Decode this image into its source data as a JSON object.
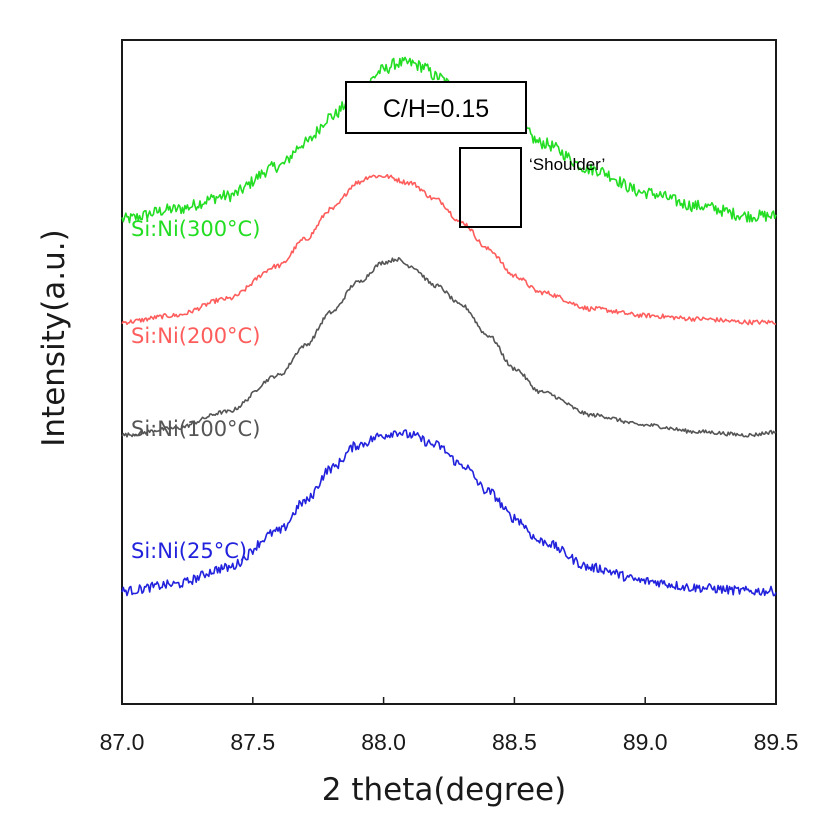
{
  "chart_data": {
    "type": "line",
    "title": "",
    "xlabel": "2 theta(degree)",
    "ylabel": "Intensity(a.u.)",
    "xlim": [
      87.0,
      89.5
    ],
    "ylim": [
      0,
      10
    ],
    "xticks": [
      "87.0",
      "87.5",
      "88.0",
      "88.5",
      "89.0",
      "89.5"
    ],
    "grid": false,
    "y_ticks_shown": false,
    "annotations": {
      "box_label": "C/H=0.15",
      "shoulder_label": "‘Shoulder’",
      "shoulder_region_x": [
        88.27,
        88.52
      ]
    },
    "series": [
      {
        "name": "Si:Ni(300°C)",
        "color": "#22dd22",
        "noise": 0.09,
        "x": [
          87.0,
          87.2,
          87.4,
          87.6,
          87.7,
          87.8,
          87.9,
          88.0,
          88.05,
          88.1,
          88.15,
          88.2,
          88.3,
          88.35,
          88.4,
          88.5,
          88.6,
          88.8,
          89.0,
          89.2,
          89.4,
          89.5
        ],
        "y": [
          7.3,
          7.45,
          7.65,
          8.1,
          8.45,
          8.85,
          9.2,
          9.55,
          9.65,
          9.65,
          9.6,
          9.45,
          9.2,
          9.15,
          9.1,
          8.8,
          8.45,
          8.05,
          7.7,
          7.5,
          7.35,
          7.35
        ]
      },
      {
        "name": "Si:Ni(200°C)",
        "color": "#ff5c5c",
        "noise": 0.035,
        "x": [
          87.0,
          87.2,
          87.4,
          87.6,
          87.7,
          87.8,
          87.9,
          87.95,
          88.0,
          88.1,
          88.2,
          88.3,
          88.4,
          88.5,
          88.6,
          88.8,
          89.0,
          89.2,
          89.4,
          89.5
        ],
        "y": [
          5.75,
          5.85,
          6.1,
          6.6,
          7.0,
          7.45,
          7.85,
          7.95,
          7.95,
          7.85,
          7.6,
          7.25,
          6.85,
          6.45,
          6.2,
          5.95,
          5.85,
          5.8,
          5.75,
          5.75
        ]
      },
      {
        "name": "Si:Ni(100°C)",
        "color": "#555555",
        "noise": 0.03,
        "x": [
          87.0,
          87.2,
          87.4,
          87.6,
          87.7,
          87.8,
          87.9,
          88.0,
          88.05,
          88.1,
          88.2,
          88.3,
          88.4,
          88.5,
          88.6,
          88.8,
          89.0,
          89.2,
          89.4,
          89.5
        ],
        "y": [
          4.05,
          4.15,
          4.4,
          4.95,
          5.4,
          5.9,
          6.35,
          6.65,
          6.7,
          6.6,
          6.3,
          6.0,
          5.55,
          5.05,
          4.7,
          4.35,
          4.2,
          4.1,
          4.05,
          4.1
        ]
      },
      {
        "name": "Si:Ni(25°C)",
        "color": "#2222dd",
        "noise": 0.07,
        "x": [
          87.0,
          87.2,
          87.4,
          87.6,
          87.7,
          87.8,
          87.9,
          88.0,
          88.05,
          88.1,
          88.2,
          88.3,
          88.4,
          88.5,
          88.6,
          88.8,
          89.0,
          89.2,
          89.4,
          89.5
        ],
        "y": [
          1.7,
          1.8,
          2.05,
          2.6,
          3.05,
          3.55,
          3.9,
          4.05,
          4.1,
          4.05,
          3.9,
          3.6,
          3.2,
          2.8,
          2.45,
          2.05,
          1.85,
          1.75,
          1.7,
          1.7
        ]
      }
    ]
  }
}
